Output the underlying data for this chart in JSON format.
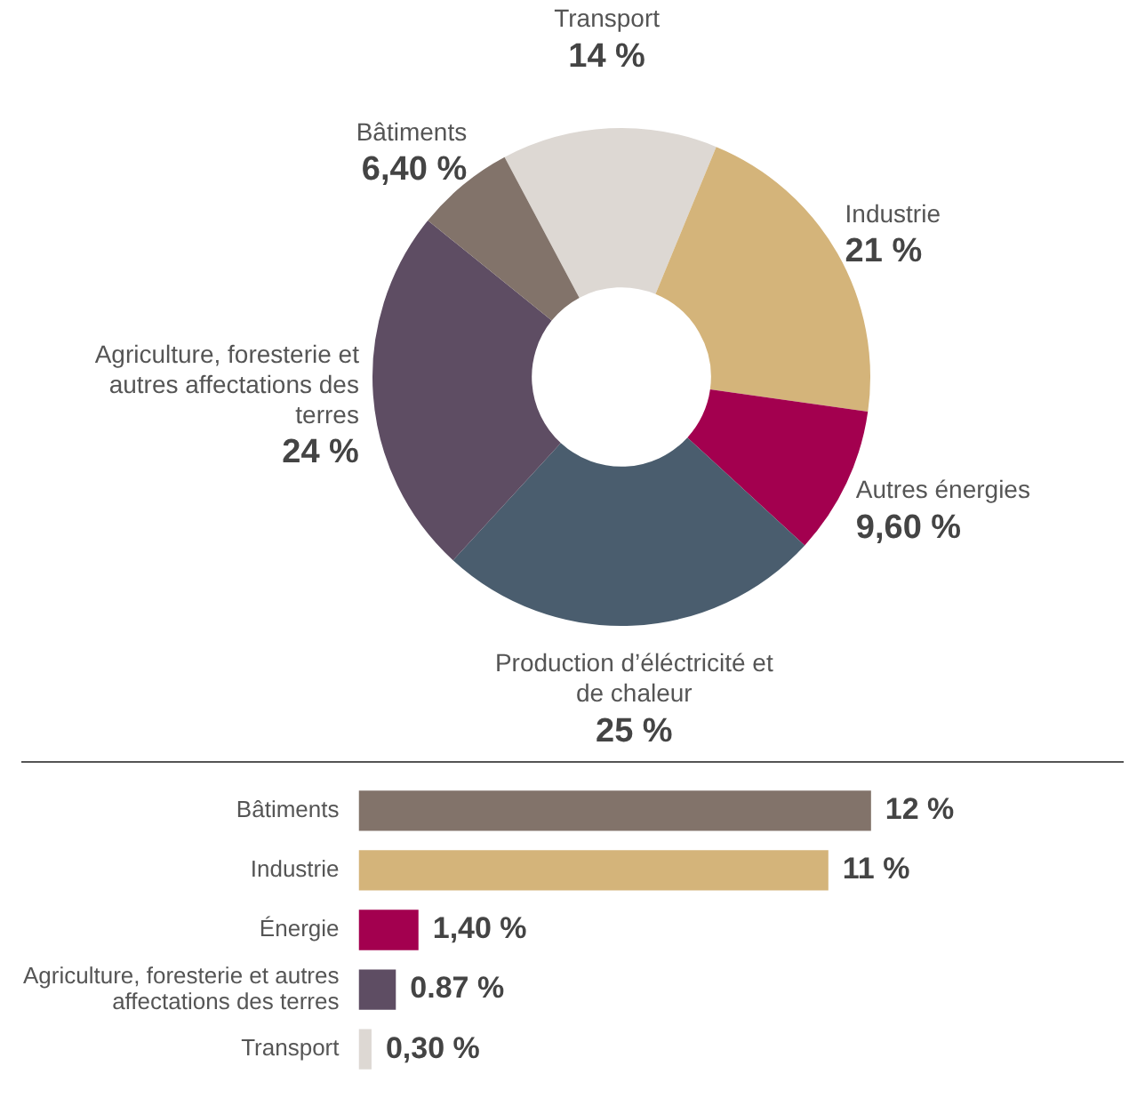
{
  "chart_data": [
    {
      "type": "donut",
      "categories": [
        "Transport",
        "Industrie",
        "Autres énergies",
        "Production d’éléctricité et de chaleur",
        "Agriculture, foresterie et autres affectations des terres",
        "Bâtiments"
      ],
      "values": [
        14,
        21,
        9.6,
        25,
        24,
        6.4
      ],
      "value_labels": [
        "14 %",
        "21 %",
        "9,60 %",
        "25 %",
        "24 %",
        "6,40 %"
      ],
      "colors": [
        "#ddd8d3",
        "#d4b47a",
        "#a3004f",
        "#4a5d6e",
        "#5e4d63",
        "#82736a"
      ],
      "legend": false
    },
    {
      "type": "bar",
      "orientation": "horizontal",
      "categories": [
        "Bâtiments",
        "Industrie",
        "Énergie",
        "Agriculture, foresterie et autres affectations des terres",
        "Transport"
      ],
      "values": [
        12,
        11,
        1.4,
        0.87,
        0.3
      ],
      "value_labels": [
        "12 %",
        "11 %",
        "1,40 %",
        "0.87 %",
        "0,30 %"
      ],
      "colors": [
        "#82736a",
        "#d4b47a",
        "#a3004f",
        "#5e4d63",
        "#ddd8d3"
      ],
      "legend": false
    }
  ]
}
